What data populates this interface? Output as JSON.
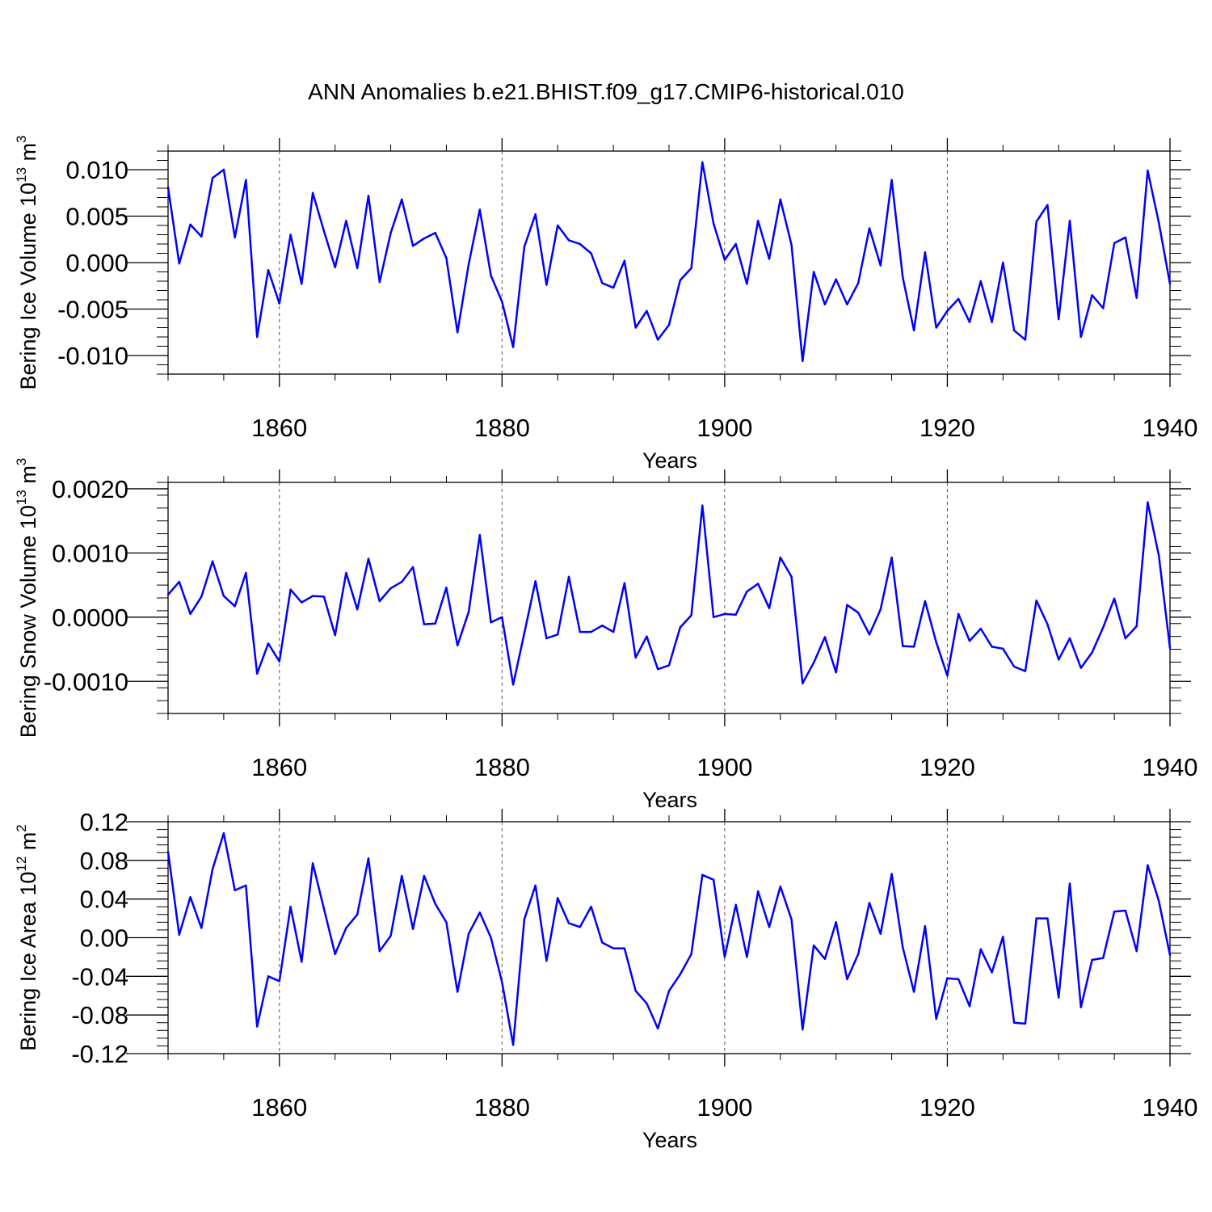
{
  "chart_data": {
    "title": "ANN Anomalies b.e21.BHIST.f09_g17.CMIP6-historical.010",
    "line_color": "#0000ff",
    "xlim": [
      1850,
      1940
    ],
    "x_start": 1850,
    "x_ticks": [
      1860,
      1880,
      1900,
      1920,
      1940
    ],
    "panels": [
      {
        "type": "line",
        "xlabel": "Years",
        "ylabel_main": "Bering Ice Volume 10",
        "ylabel_sup": "13",
        "ylabel_tail": " m",
        "ylabel_unit_sup": "3",
        "ylim": [
          -0.012,
          0.012
        ],
        "y_ticks": [
          0.01,
          0.005,
          0.0,
          -0.005,
          -0.01
        ],
        "y_tick_labels": [
          "0.010",
          "0.005",
          "0.000",
          "-0.005",
          "-0.010"
        ],
        "values": [
          0.0081,
          -0.0001,
          0.0041,
          0.0028,
          0.0091,
          0.01,
          0.0027,
          0.0089,
          -0.008,
          -0.0008,
          -0.0044,
          0.003,
          -0.0023,
          0.0075,
          0.0034,
          -0.0005,
          0.0045,
          -0.0006,
          0.0072,
          -0.0021,
          0.0032,
          0.0068,
          0.0018,
          0.0026,
          0.0032,
          0.0005,
          -0.0075,
          -0.0002,
          0.0057,
          -0.0014,
          -0.0042,
          -0.0091,
          0.0017,
          0.0052,
          -0.0024,
          0.004,
          0.0024,
          0.002,
          0.001,
          -0.0022,
          -0.0027,
          0.0002,
          -0.007,
          -0.0052,
          -0.0083,
          -0.0067,
          -0.0019,
          -0.0006,
          0.0108,
          0.0042,
          0.0003,
          0.002,
          -0.0023,
          0.0045,
          0.0004,
          0.0068,
          0.0019,
          -0.0106,
          -0.001,
          -0.0045,
          -0.0018,
          -0.0045,
          -0.0022,
          0.0037,
          -0.0003,
          0.0089,
          -0.0016,
          -0.0073,
          0.0011,
          -0.007,
          -0.0052,
          -0.0039,
          -0.0064,
          -0.002,
          -0.0064,
          0.0,
          -0.0073,
          -0.0083,
          0.0044,
          0.0062,
          -0.0061,
          0.0045,
          -0.008,
          -0.0035,
          -0.0049,
          0.0021,
          0.0027,
          -0.0038,
          0.0099,
          0.0043,
          -0.0023
        ]
      },
      {
        "type": "line",
        "xlabel": "Years",
        "ylabel_main": "Bering Snow Volume 10",
        "ylabel_sup": "13",
        "ylabel_tail": " m",
        "ylabel_unit_sup": "3",
        "ylim": [
          -0.0015,
          0.0021
        ],
        "y_ticks": [
          0.002,
          0.001,
          0.0,
          -0.001
        ],
        "y_tick_labels": [
          "0.0020",
          "0.0010",
          "0.0000",
          "-0.0010"
        ],
        "values": [
          0.00035,
          0.00055,
          5e-05,
          0.00032,
          0.00087,
          0.00033,
          0.00017,
          0.00069,
          -0.00088,
          -0.00041,
          -0.00069,
          0.00043,
          0.00023,
          0.00033,
          0.00032,
          -0.00028,
          0.00069,
          0.00012,
          0.00091,
          0.00025,
          0.00045,
          0.00055,
          0.00078,
          -0.00011,
          -0.0001,
          0.00046,
          -0.00044,
          8e-05,
          0.00128,
          -8e-05,
          0.0,
          -0.00105,
          -0.00025,
          0.00056,
          -0.00033,
          -0.00027,
          0.00063,
          -0.00023,
          -0.00023,
          -0.00013,
          -0.00023,
          0.00053,
          -0.00063,
          -0.0003,
          -0.00081,
          -0.00075,
          -0.00016,
          3e-05,
          0.00174,
          0.0,
          5e-05,
          4e-05,
          0.0004,
          0.00052,
          0.00014,
          0.00093,
          0.00063,
          -0.00103,
          -0.00071,
          -0.00031,
          -0.00086,
          0.00019,
          7e-05,
          -0.00027,
          0.00012,
          0.00093,
          -0.00045,
          -0.00046,
          0.00025,
          -0.00039,
          -0.00091,
          5e-05,
          -0.00037,
          -0.00018,
          -0.00046,
          -0.00049,
          -0.00077,
          -0.00084,
          0.00026,
          -0.00011,
          -0.00066,
          -0.00033,
          -0.00079,
          -0.00055,
          -0.00016,
          0.00029,
          -0.00033,
          -0.00014,
          0.00179,
          0.00096,
          -0.00048
        ]
      },
      {
        "type": "line",
        "xlabel": "Years",
        "ylabel_main": "Bering Ice Area 10",
        "ylabel_sup": "12",
        "ylabel_tail": " m",
        "ylabel_unit_sup": "2",
        "ylim": [
          -0.12,
          0.12
        ],
        "y_ticks": [
          0.12,
          0.08,
          0.04,
          0.0,
          -0.04,
          -0.08,
          -0.12
        ],
        "y_tick_labels": [
          "0.12",
          "0.08",
          "0.04",
          "0.00",
          "-0.04",
          "-0.08",
          "-0.12"
        ],
        "values": [
          0.089,
          0.003,
          0.042,
          0.01,
          0.071,
          0.108,
          0.049,
          0.054,
          -0.092,
          -0.04,
          -0.045,
          0.032,
          -0.025,
          0.077,
          0.03,
          -0.017,
          0.01,
          0.024,
          0.082,
          -0.014,
          0.002,
          0.064,
          0.009,
          0.064,
          0.035,
          0.016,
          -0.056,
          0.004,
          0.026,
          0.0,
          -0.046,
          -0.111,
          0.019,
          0.054,
          -0.024,
          0.041,
          0.015,
          0.011,
          0.032,
          -0.005,
          -0.011,
          -0.011,
          -0.055,
          -0.068,
          -0.094,
          -0.055,
          -0.038,
          -0.017,
          0.065,
          0.06,
          -0.02,
          0.034,
          -0.02,
          0.048,
          0.011,
          0.053,
          0.019,
          -0.095,
          -0.008,
          -0.022,
          0.016,
          -0.043,
          -0.017,
          0.036,
          0.004,
          0.066,
          -0.01,
          -0.056,
          0.012,
          -0.084,
          -0.042,
          -0.043,
          -0.071,
          -0.012,
          -0.036,
          0.001,
          -0.088,
          -0.089,
          0.02,
          0.02,
          -0.062,
          0.056,
          -0.072,
          -0.023,
          -0.021,
          0.027,
          0.028,
          -0.014,
          0.075,
          0.038,
          -0.018
        ]
      }
    ]
  }
}
